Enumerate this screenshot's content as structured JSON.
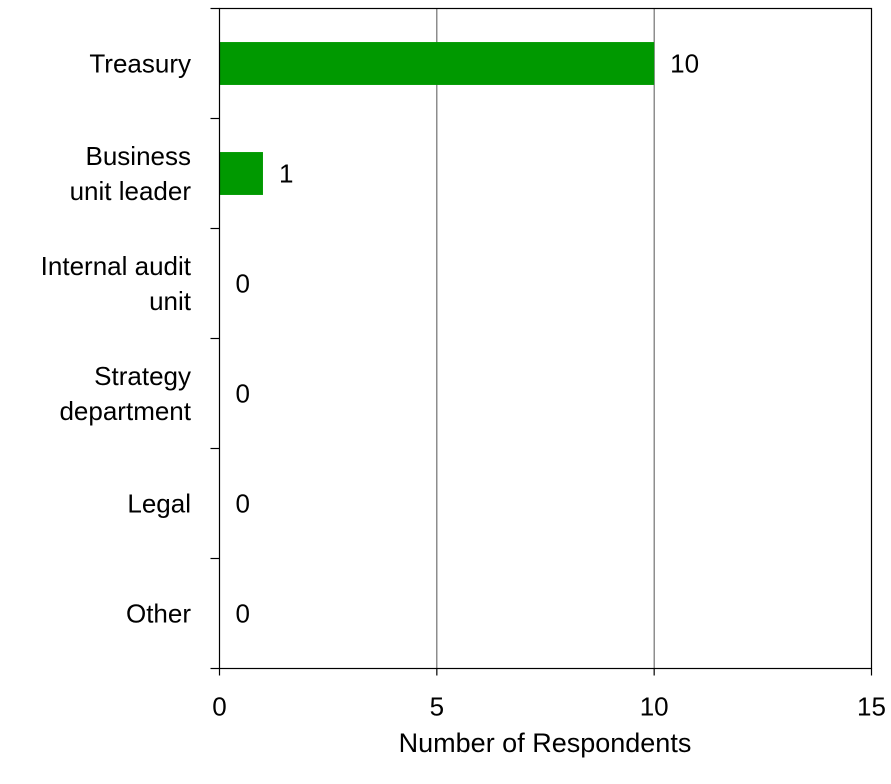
{
  "chart_data": {
    "type": "bar",
    "orientation": "horizontal",
    "categories": [
      [
        "Treasury"
      ],
      [
        "Business",
        "unit leader"
      ],
      [
        "Internal audit",
        "unit"
      ],
      [
        "Strategy",
        "department"
      ],
      [
        "Legal"
      ],
      [
        "Other"
      ]
    ],
    "values": [
      10,
      1,
      0,
      0,
      0,
      0
    ],
    "xlabel": "Number of Respondents",
    "ylabel": "",
    "title": "",
    "xlim": [
      0,
      15
    ],
    "xticks": [
      0,
      5,
      10,
      15
    ],
    "grid": true,
    "bar_color": "#009900"
  }
}
